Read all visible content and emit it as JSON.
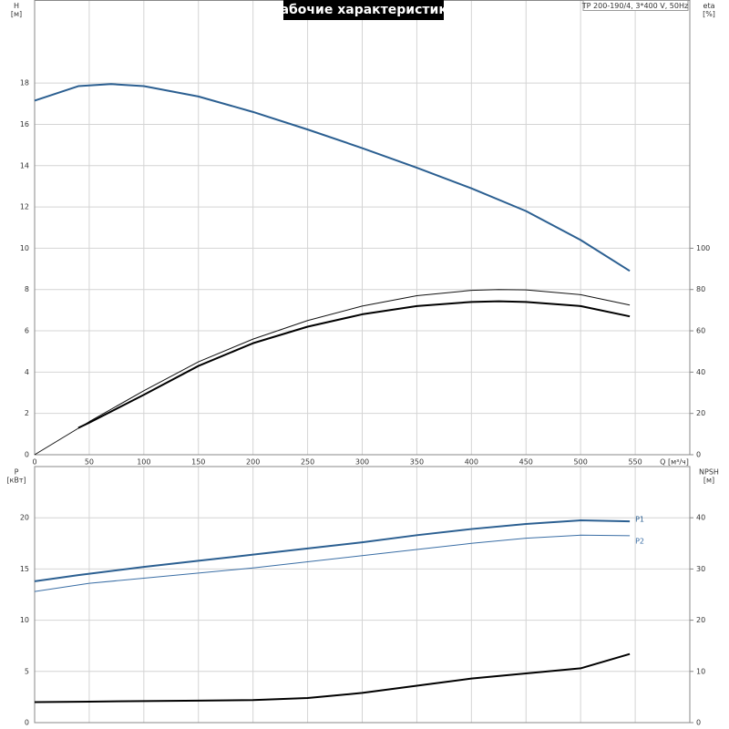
{
  "chart_data": [
    {
      "type": "line",
      "title": "Рабочие характеристики",
      "info": "TP 200-190/4, 3*400 V, 50Hz",
      "ylabel": "H",
      "yunit": "[м]",
      "y2label": "eta",
      "y2unit": "[%]",
      "xlabel": "Q [м³/ч]",
      "xlim": [
        0,
        600
      ],
      "xticks": [
        0,
        50,
        100,
        150,
        200,
        250,
        300,
        350,
        400,
        450,
        500,
        550
      ],
      "ylim": [
        0,
        22
      ],
      "yticks": [
        0,
        2,
        4,
        6,
        8,
        10,
        12,
        14,
        16,
        18
      ],
      "y2lim": [
        0,
        220
      ],
      "y2ticks": [
        0,
        20,
        40,
        60,
        80,
        100
      ],
      "grid": true,
      "series": [
        {
          "color": "#2b5f91",
          "width": 2,
          "x": [
            0,
            40,
            70,
            100,
            150,
            200,
            250,
            300,
            350,
            400,
            450,
            500,
            545
          ],
          "values": [
            17.15,
            17.85,
            17.95,
            17.85,
            17.35,
            16.6,
            15.75,
            14.85,
            13.9,
            12.9,
            11.8,
            10.4,
            8.9
          ]
        },
        {
          "color": "#111111",
          "width": 1,
          "axis": "y2",
          "x": [
            0,
            50,
            100,
            150,
            200,
            250,
            300,
            350,
            400,
            425,
            450,
            500,
            545
          ],
          "values": [
            0,
            16,
            31,
            45,
            56,
            65,
            72,
            77,
            79.6,
            80,
            79.8,
            77.5,
            72.5
          ]
        },
        {
          "color": "#000000",
          "width": 2,
          "axis": "y2",
          "x": [
            40,
            50,
            100,
            150,
            200,
            250,
            300,
            350,
            400,
            425,
            450,
            500,
            545
          ],
          "values": [
            13,
            15.5,
            29,
            43,
            54,
            62,
            68,
            72,
            74,
            74.3,
            74,
            72,
            67
          ]
        }
      ]
    },
    {
      "type": "line",
      "ylabel": "P",
      "yunit": "[кВт]",
      "y2label": "NPSH",
      "y2unit": "[м]",
      "xlim": [
        0,
        600
      ],
      "ylim": [
        0,
        25
      ],
      "yticks": [
        0,
        5,
        10,
        15,
        20
      ],
      "y2lim": [
        0,
        50
      ],
      "y2ticks": [
        0,
        10,
        20,
        30,
        40
      ],
      "grid": true,
      "series": [
        {
          "name": "P1",
          "color": "#2b5f91",
          "width": 2,
          "x": [
            0,
            40,
            100,
            150,
            200,
            250,
            300,
            350,
            400,
            450,
            500,
            545
          ],
          "values": [
            13.8,
            14.4,
            15.2,
            15.8,
            16.4,
            17.0,
            17.6,
            18.3,
            18.9,
            19.4,
            19.75,
            19.65
          ]
        },
        {
          "name": "P2",
          "color": "#3a6ea5",
          "width": 1,
          "x": [
            0,
            50,
            100,
            150,
            200,
            250,
            300,
            350,
            400,
            450,
            500,
            545
          ],
          "values": [
            12.8,
            13.6,
            14.1,
            14.6,
            15.1,
            15.7,
            16.3,
            16.9,
            17.5,
            18.0,
            18.3,
            18.25
          ]
        },
        {
          "color": "#000000",
          "width": 2,
          "axis": "y2",
          "x": [
            0,
            50,
            100,
            150,
            200,
            250,
            300,
            350,
            400,
            450,
            500,
            545
          ],
          "values": [
            4,
            4.1,
            4.2,
            4.3,
            4.4,
            4.8,
            5.8,
            7.2,
            8.6,
            9.6,
            10.6,
            13.4
          ]
        }
      ]
    }
  ]
}
